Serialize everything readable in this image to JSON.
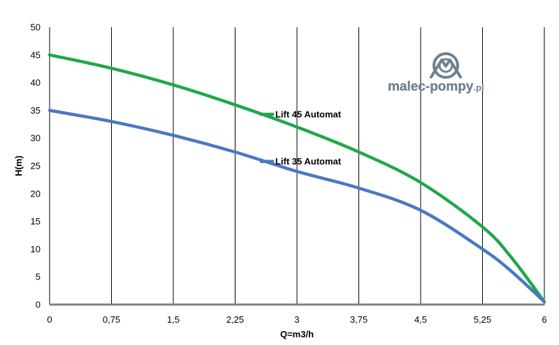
{
  "chart_data": {
    "type": "line",
    "xlabel": "Q=m3/h",
    "ylabel": "H(m)",
    "x_ticks": [
      "0",
      "0,75",
      "1,5",
      "2,25",
      "3",
      "3,75",
      "4,5",
      "5,25",
      "6"
    ],
    "y_ticks": [
      "0",
      "5",
      "10",
      "15",
      "20",
      "25",
      "30",
      "35",
      "40",
      "45",
      "50"
    ],
    "xlim": [
      0,
      6
    ],
    "ylim": [
      0,
      50
    ],
    "grid": true,
    "grid_lines": "vertical",
    "series": [
      {
        "name": "Lift 45 Automat",
        "color": "#1fa84a",
        "x": [
          0,
          0.75,
          1.5,
          2.25,
          3,
          3.75,
          4.5,
          5.25,
          5.6,
          6
        ],
        "y": [
          45,
          42.6,
          39.6,
          36,
          32,
          27.5,
          22,
          14,
          8.5,
          0.5
        ]
      },
      {
        "name": "Lift 35 Automat",
        "color": "#4a78c2",
        "x": [
          0,
          0.75,
          1.5,
          2.25,
          3,
          3.75,
          4.5,
          5.25,
          5.6,
          6
        ],
        "y": [
          35,
          33,
          30.5,
          27.5,
          24,
          21,
          17,
          10,
          6,
          0.5
        ]
      }
    ],
    "legend_placement": "inline labels"
  },
  "logo": {
    "text_main": "malec-pompy",
    "text_suffix": ".pl",
    "colors": {
      "main": "#6e7f92",
      "accent": "#4a78c2"
    },
    "icon": "mountain-circle-logo"
  }
}
